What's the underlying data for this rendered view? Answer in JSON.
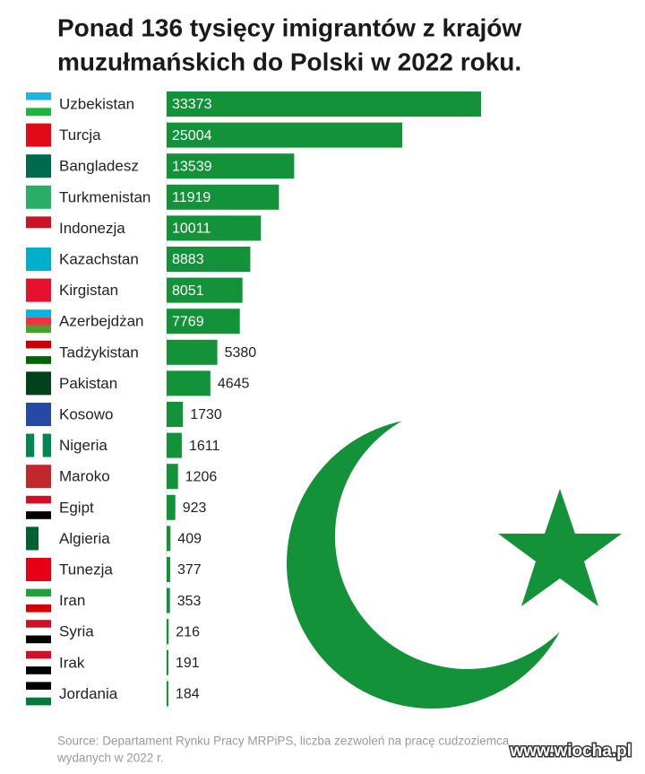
{
  "chart_data": {
    "type": "bar",
    "orientation": "horizontal",
    "title": [
      "Ponad 136 tysięcy imigrantów z krajów",
      "muzułmańskich do Polski w 2022 roku."
    ],
    "categories": [
      "Uzbekistan",
      "Turcja",
      "Bangladesz",
      "Turkmenistan",
      "Indonezja",
      "Kazachstan",
      "Kirgistan",
      "Azerbejdżan",
      "Tadżykistan",
      "Pakistan",
      "Kosowo",
      "Nigeria",
      "Maroko",
      "Egipt",
      "Algieria",
      "Tunezja",
      "Iran",
      "Syria",
      "Irak",
      "Jordania"
    ],
    "values": [
      33373,
      25004,
      13539,
      11919,
      10011,
      8883,
      8051,
      7769,
      5380,
      4645,
      1730,
      1611,
      1206,
      923,
      409,
      377,
      353,
      216,
      191,
      184
    ],
    "color": "#14923a",
    "source": [
      "Source: Departament Rynku Pracy MRPiPS, liczba zezwoleń na pracę cudzoziemca",
      "wydanych w 2022 r."
    ],
    "watermark": "www.wiocha.pl"
  }
}
